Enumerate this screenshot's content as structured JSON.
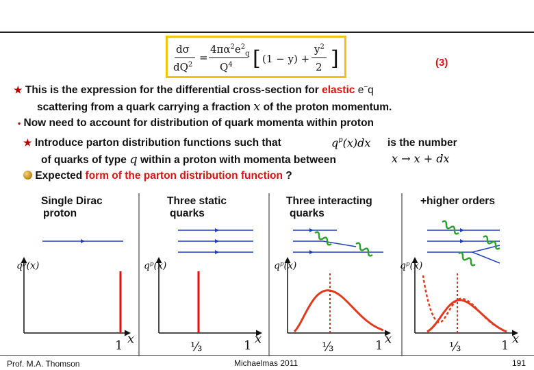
{
  "equation": {
    "number": "(3)"
  },
  "text": {
    "line1_a": "This is the expression for the differential cross-section for ",
    "line1_elastic": "elastic",
    "line1_b": " e",
    "line1_c": "q",
    "line2_a": "scattering from a quark carrying a fraction ",
    "line2_x": "x",
    "line2_b": " of the proton momentum.",
    "line3": "Now need to account for distribution of quark momenta within proton",
    "line4_a": "Introduce parton distribution functions such that",
    "line4_b": "is the number",
    "line5_a": "of quarks of type ",
    "line5_q": "q",
    "line5_b": " within a proton with momenta between",
    "line6_a": "Expected ",
    "line6_b": "form of the parton distribution function",
    "line6_c": " ?"
  },
  "panels": [
    {
      "label_line1": "Single Dirac",
      "label_line2": "proton",
      "tick_third": "",
      "tick_one": "1",
      "xlabel": "x",
      "ylabel": "qᵖ(x)"
    },
    {
      "label_line1": "Three static",
      "label_line2": "quarks",
      "tick_third": "⅓",
      "tick_one": "1",
      "xlabel": "x",
      "ylabel": "qᵖ(x)"
    },
    {
      "label_line1": "Three interacting",
      "label_line2": "quarks",
      "tick_third": "⅓",
      "tick_one": "1",
      "xlabel": "x",
      "ylabel": "qᵖ(x)"
    },
    {
      "label_line1": "+higher orders",
      "label_line2": "",
      "tick_third": "⅓",
      "tick_one": "1",
      "xlabel": "x",
      "ylabel": "qᵖ(x)"
    }
  ],
  "footer": {
    "left": "Prof. M.A. Thomson",
    "center": "Michaelmas 2011",
    "right": "191"
  },
  "colors": {
    "accent_red": "#dd1111",
    "frame_yellow": "#f1c40f",
    "arrow_blue": "#1f3fbf",
    "gluon_green": "#2ca02c",
    "curve_red": "#e03a1e"
  }
}
